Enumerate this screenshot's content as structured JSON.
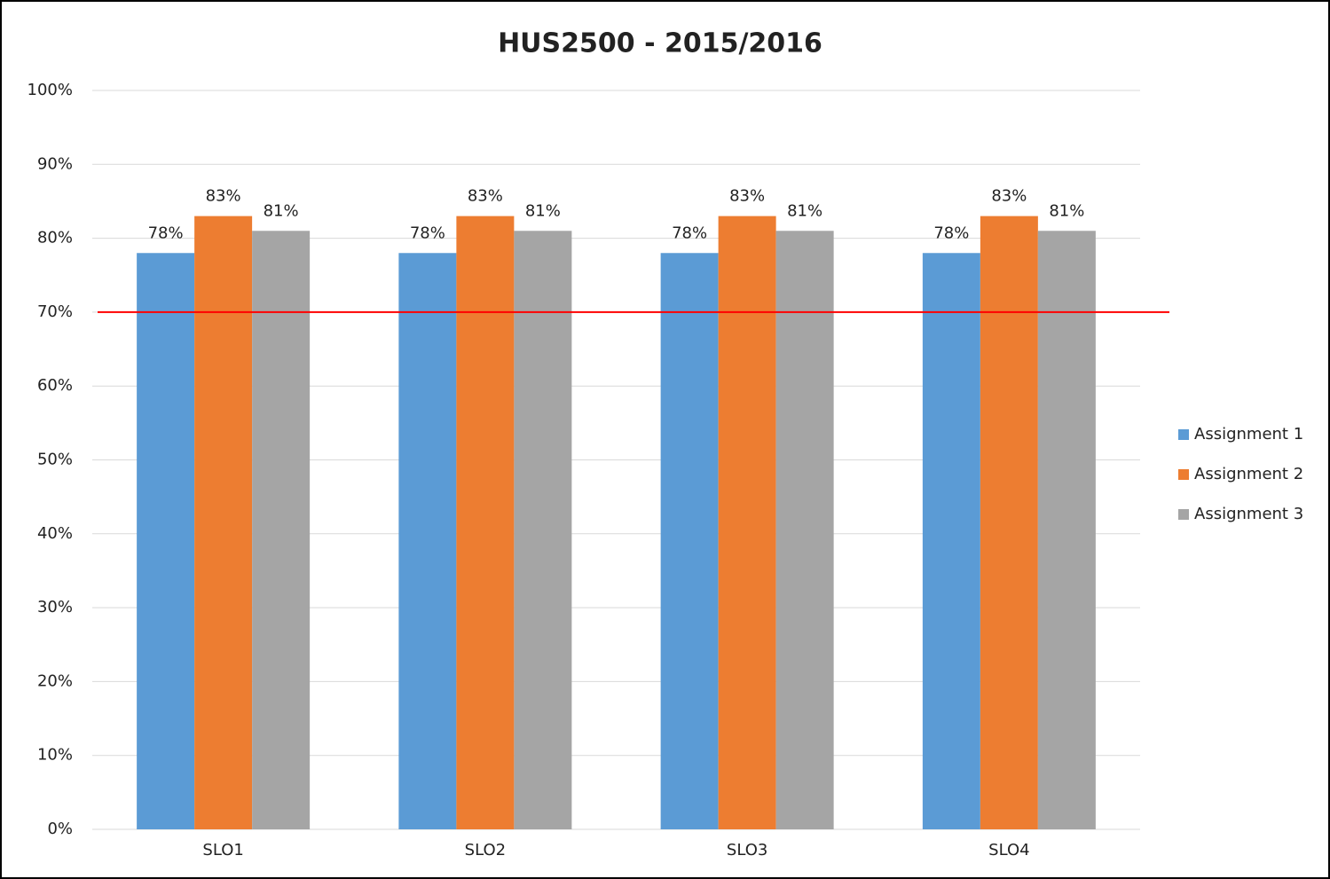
{
  "chart_data": {
    "type": "bar",
    "title": "HUS2500 - 2015/2016",
    "categories": [
      "SLO1",
      "SLO2",
      "SLO3",
      "SLO4"
    ],
    "series": [
      {
        "name": "Assignment 1",
        "color": "#5b9bd5",
        "values": [
          78,
          78,
          78,
          78
        ],
        "value_labels": [
          "78%",
          "78%",
          "78%",
          "78%"
        ]
      },
      {
        "name": "Assignment 2",
        "color": "#ed7d31",
        "values": [
          83,
          83,
          83,
          83
        ],
        "value_labels": [
          "83%",
          "83%",
          "83%",
          "83%"
        ]
      },
      {
        "name": "Assignment 3",
        "color": "#a5a5a5",
        "values": [
          81,
          81,
          81,
          81
        ],
        "value_labels": [
          "81%",
          "81%",
          "81%",
          "81%"
        ]
      }
    ],
    "ylim": [
      0,
      100
    ],
    "yticks": [
      {
        "value": 0,
        "label": "0%"
      },
      {
        "value": 10,
        "label": "10%"
      },
      {
        "value": 20,
        "label": "20%"
      },
      {
        "value": 30,
        "label": "30%"
      },
      {
        "value": 40,
        "label": "40%"
      },
      {
        "value": 50,
        "label": "50%"
      },
      {
        "value": 60,
        "label": "60%"
      },
      {
        "value": 70,
        "label": "70%"
      },
      {
        "value": 80,
        "label": "80%"
      },
      {
        "value": 90,
        "label": "90%"
      },
      {
        "value": 100,
        "label": "100%"
      }
    ],
    "grid": true,
    "legend": "right",
    "reference_line": {
      "value": 70,
      "color": "#ff0000"
    }
  }
}
